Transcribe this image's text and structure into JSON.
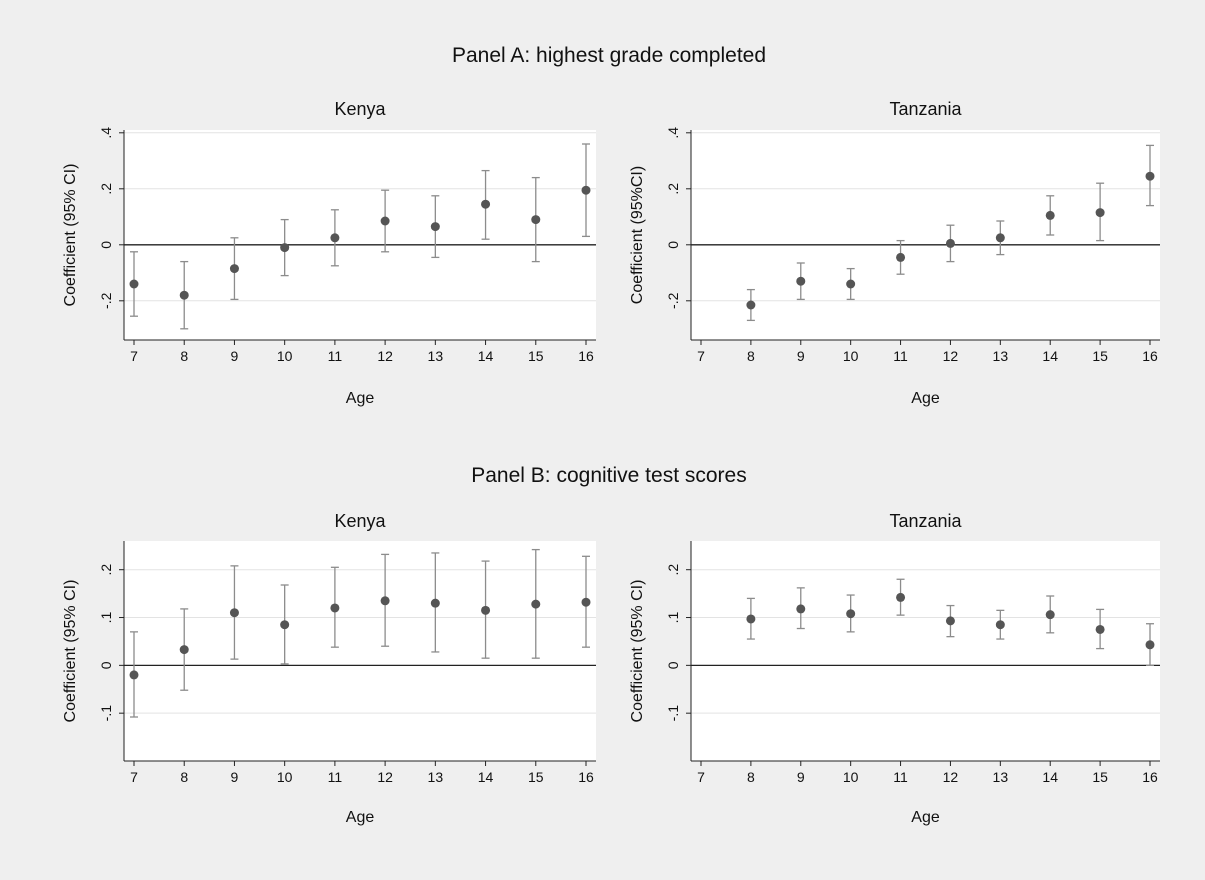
{
  "panels": [
    {
      "title": "Panel A: highest grade completed"
    },
    {
      "title": "Panel B: cognitive test scores"
    }
  ],
  "colors": {
    "background": "#efefef",
    "plot": "#ffffff",
    "marker": "#555555",
    "ci": "#8c8c8c",
    "zero_line": "#222222",
    "grid": "#e3e3e3"
  },
  "chart_data": [
    {
      "type": "scatter",
      "panel": "Panel A: highest grade completed",
      "title": "Kenya",
      "xlabel": "Age",
      "ylabel": "Coefficient (95% CI)",
      "x_ticks": [
        "7",
        "8",
        "9",
        "10",
        "11",
        "12",
        "13",
        "14",
        "15",
        "16"
      ],
      "y_ticks": [
        -0.2,
        0,
        0.2,
        0.4
      ],
      "y_tick_labels": [
        "-.2",
        "0",
        ".2",
        ".4"
      ],
      "xlim": [
        7,
        16
      ],
      "ylim": [
        -0.34,
        0.41
      ],
      "reference_line": 0,
      "grid": true,
      "x": [
        7,
        8,
        9,
        10,
        11,
        12,
        13,
        14,
        15,
        16
      ],
      "y": [
        -0.14,
        -0.18,
        -0.085,
        -0.01,
        0.025,
        0.085,
        0.065,
        0.145,
        0.09,
        0.195
      ],
      "ci_low": [
        -0.255,
        -0.3,
        -0.195,
        -0.11,
        -0.075,
        -0.025,
        -0.045,
        0.02,
        -0.06,
        0.03
      ],
      "ci_high": [
        -0.025,
        -0.06,
        0.025,
        0.09,
        0.125,
        0.195,
        0.175,
        0.265,
        0.24,
        0.36
      ]
    },
    {
      "type": "scatter",
      "panel": "Panel A: highest grade completed",
      "title": "Tanzania",
      "xlabel": "Age",
      "ylabel": "Coefficient (95%CI)",
      "x_ticks": [
        "7",
        "8",
        "9",
        "10",
        "11",
        "12",
        "13",
        "14",
        "15",
        "16"
      ],
      "y_ticks": [
        -0.2,
        0,
        0.2,
        0.4
      ],
      "y_tick_labels": [
        "-.2",
        "0",
        ".2",
        ".4"
      ],
      "xlim": [
        7,
        16
      ],
      "ylim": [
        -0.34,
        0.41
      ],
      "reference_line": 0,
      "grid": true,
      "x": [
        8,
        9,
        10,
        11,
        12,
        13,
        14,
        15,
        16
      ],
      "y": [
        -0.215,
        -0.13,
        -0.14,
        -0.045,
        0.005,
        0.025,
        0.105,
        0.115,
        0.245
      ],
      "ci_low": [
        -0.27,
        -0.195,
        -0.195,
        -0.105,
        -0.06,
        -0.035,
        0.035,
        0.015,
        0.14
      ],
      "ci_high": [
        -0.16,
        -0.065,
        -0.085,
        0.015,
        0.07,
        0.085,
        0.175,
        0.22,
        0.355
      ]
    },
    {
      "type": "scatter",
      "panel": "Panel B: cognitive test scores",
      "title": "Kenya",
      "xlabel": "Age",
      "ylabel": "Coefficient (95% CI)",
      "x_ticks": [
        "7",
        "8",
        "9",
        "10",
        "11",
        "12",
        "13",
        "14",
        "15",
        "16"
      ],
      "y_ticks": [
        -0.1,
        0,
        0.1,
        0.2
      ],
      "y_tick_labels": [
        "-.1",
        "0",
        ".1",
        ".2"
      ],
      "xlim": [
        7,
        16
      ],
      "ylim": [
        -0.2,
        0.26
      ],
      "reference_line": 0,
      "grid": true,
      "x": [
        7,
        8,
        9,
        10,
        11,
        12,
        13,
        14,
        15,
        16
      ],
      "y": [
        -0.02,
        0.033,
        0.11,
        0.085,
        0.12,
        0.135,
        0.13,
        0.115,
        0.128,
        0.132
      ],
      "ci_low": [
        -0.108,
        -0.052,
        0.013,
        0.003,
        0.038,
        0.04,
        0.028,
        0.015,
        0.015,
        0.038
      ],
      "ci_high": [
        0.07,
        0.118,
        0.208,
        0.168,
        0.205,
        0.232,
        0.235,
        0.218,
        0.242,
        0.228
      ]
    },
    {
      "type": "scatter",
      "panel": "Panel B: cognitive test scores",
      "title": "Tanzania",
      "xlabel": "Age",
      "ylabel": "Coefficient (95% CI)",
      "x_ticks": [
        "7",
        "8",
        "9",
        "10",
        "11",
        "12",
        "13",
        "14",
        "15",
        "16"
      ],
      "y_ticks": [
        -0.1,
        0,
        0.1,
        0.2
      ],
      "y_tick_labels": [
        "-.1",
        "0",
        ".1",
        ".2"
      ],
      "xlim": [
        7,
        16
      ],
      "ylim": [
        -0.2,
        0.26
      ],
      "reference_line": 0,
      "grid": true,
      "x": [
        8,
        9,
        10,
        11,
        12,
        13,
        14,
        15,
        16
      ],
      "y": [
        0.097,
        0.118,
        0.108,
        0.142,
        0.093,
        0.085,
        0.106,
        0.075,
        0.043
      ],
      "ci_low": [
        0.055,
        0.077,
        0.07,
        0.105,
        0.06,
        0.055,
        0.068,
        0.035,
        0.0
      ],
      "ci_high": [
        0.14,
        0.162,
        0.147,
        0.18,
        0.125,
        0.115,
        0.145,
        0.117,
        0.087
      ]
    }
  ]
}
